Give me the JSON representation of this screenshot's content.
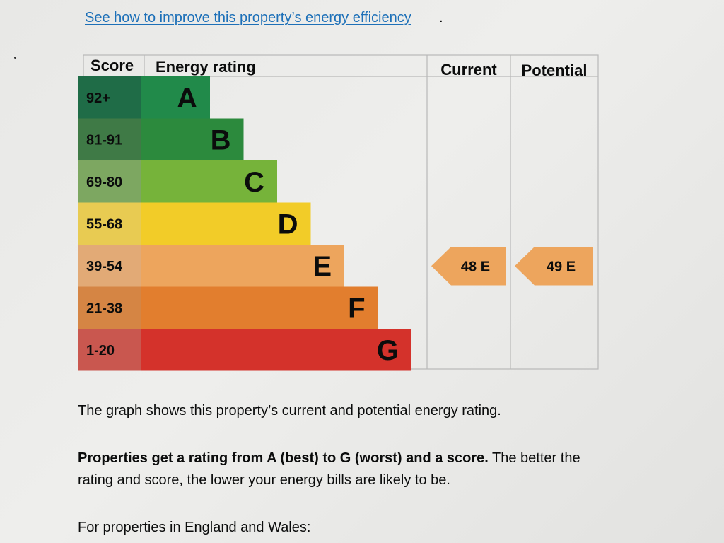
{
  "link": {
    "text": "See how to improve this property’s energy efficiency",
    "period": "."
  },
  "chart_data": {
    "type": "bar",
    "headers": {
      "score": "Score",
      "energy_rating": "Energy rating",
      "current": "Current",
      "potential": "Potential"
    },
    "bands": [
      {
        "score": "92+",
        "letter": "A",
        "min": 92,
        "color": "#218a4a",
        "score_color": "#1f6c47"
      },
      {
        "score": "81-91",
        "letter": "B",
        "min": 81,
        "color": "#2c8a3d",
        "score_color": "#3f7a46"
      },
      {
        "score": "69-80",
        "letter": "C",
        "min": 69,
        "color": "#76b33a",
        "score_color": "#7da761"
      },
      {
        "score": "55-68",
        "letter": "D",
        "min": 55,
        "color": "#f2cc28",
        "score_color": "#e8cb52"
      },
      {
        "score": "39-54",
        "letter": "E",
        "min": 39,
        "color": "#eda55d",
        "score_color": "#e2aa76"
      },
      {
        "score": "21-38",
        "letter": "F",
        "min": 21,
        "color": "#e27e2e",
        "score_color": "#d58544"
      },
      {
        "score": "1-20",
        "letter": "G",
        "min": 1,
        "color": "#d4322b",
        "score_color": "#c9574f"
      }
    ],
    "current": {
      "value": 48,
      "letter": "E",
      "label": "48  E",
      "color": "#eda55d"
    },
    "potential": {
      "value": 49,
      "letter": "E",
      "label": "49  E",
      "color": "#eda55d"
    }
  },
  "text": {
    "p1": "The graph shows this property’s current and potential energy rating.",
    "p2_bold": "Properties get a rating from A (best) to G (worst) and a score.",
    "p2_rest": " The better the rating and score, the lower your energy bills are likely to be.",
    "p3": "For properties in England and Wales:"
  }
}
